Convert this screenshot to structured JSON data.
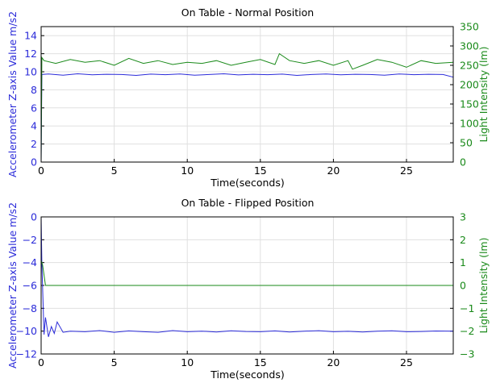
{
  "colors": {
    "left": "#2b2bd9",
    "right": "#1a8a1a",
    "axis": "#000000",
    "grid": "#e0e0e0"
  },
  "chart_data": [
    {
      "type": "line",
      "title": "On Table - Normal Position",
      "xlabel": "Time(seconds)",
      "ylabel_left": "Accelerometer Z-axis Value m/s2",
      "ylabel_right": "Light Intensity (lm)",
      "xlim": [
        0,
        28.2
      ],
      "ylim_left": [
        0,
        15
      ],
      "ylim_right": [
        0,
        350
      ],
      "xticks": [
        "0",
        "5",
        "10",
        "15",
        "20",
        "25"
      ],
      "yticks_left": [
        "0",
        "2",
        "4",
        "6",
        "8",
        "10",
        "12",
        "14"
      ],
      "yticks_right": [
        "0",
        "50",
        "100",
        "150",
        "200",
        "250",
        "300",
        "350"
      ],
      "grid": true,
      "series": [
        {
          "axis": "left",
          "color": "#2b2bd9",
          "x": [
            0,
            0.05,
            0.5,
            1.5,
            2.5,
            3.5,
            4.5,
            5.5,
            6.5,
            7.5,
            8.5,
            9.5,
            10.5,
            11.5,
            12.5,
            13.5,
            14.5,
            15.5,
            16.5,
            17.5,
            18.5,
            19.5,
            20.5,
            21.5,
            22.5,
            23.5,
            24.5,
            25.5,
            26.5,
            27.5,
            28.2
          ],
          "y": [
            0,
            9.7,
            9.75,
            9.62,
            9.78,
            9.66,
            9.72,
            9.7,
            9.6,
            9.74,
            9.68,
            9.75,
            9.62,
            9.7,
            9.78,
            9.65,
            9.72,
            9.68,
            9.74,
            9.6,
            9.7,
            9.76,
            9.66,
            9.72,
            9.7,
            9.62,
            9.75,
            9.68,
            9.72,
            9.7,
            9.4
          ]
        },
        {
          "axis": "right",
          "color": "#1a8a1a",
          "x": [
            0,
            0.05,
            0.2,
            1,
            2,
            3,
            4,
            5,
            6,
            7,
            8,
            9,
            10,
            11,
            12,
            13,
            14,
            15,
            16,
            16.3,
            17,
            18,
            19,
            20,
            21,
            21.3,
            22,
            23,
            24,
            25,
            26,
            27,
            28.2
          ],
          "y": [
            0,
            270,
            262,
            255,
            265,
            258,
            262,
            250,
            268,
            255,
            262,
            252,
            258,
            255,
            262,
            250,
            258,
            265,
            252,
            280,
            262,
            255,
            262,
            250,
            262,
            240,
            250,
            265,
            258,
            245,
            262,
            255,
            258
          ]
        }
      ]
    },
    {
      "type": "line",
      "title": "On Table - Flipped Position",
      "xlabel": "Time(seconds)",
      "ylabel_left": "Accelerometer Z-axis Value m/s2",
      "ylabel_right": "Light Intensity (lm)",
      "xlim": [
        0,
        28.2
      ],
      "ylim_left": [
        -12,
        0
      ],
      "ylim_right": [
        -3,
        3
      ],
      "xticks": [
        "0",
        "5",
        "10",
        "15",
        "20",
        "25"
      ],
      "yticks_left": [
        "0",
        "−2",
        "−4",
        "−6",
        "−8",
        "−10",
        "−12"
      ],
      "yticks_right": [
        "3",
        "2",
        "1",
        "0",
        "−1",
        "−2",
        "−3"
      ],
      "grid": true,
      "series": [
        {
          "axis": "left",
          "color": "#2b2bd9",
          "x": [
            0,
            0.05,
            0.2,
            0.3,
            0.5,
            0.7,
            0.9,
            1.1,
            1.5,
            2,
            3,
            4,
            5,
            6,
            7,
            8,
            9,
            10,
            11,
            12,
            13,
            14,
            15,
            16,
            17,
            18,
            19,
            20,
            21,
            22,
            23,
            24,
            25,
            26,
            27,
            28.2
          ],
          "y": [
            0,
            -4,
            -10.3,
            -8.8,
            -10.5,
            -9.6,
            -10.2,
            -9.2,
            -10.1,
            -10.0,
            -10.05,
            -9.95,
            -10.1,
            -9.98,
            -10.05,
            -10.1,
            -9.95,
            -10.05,
            -10.0,
            -10.08,
            -9.97,
            -10.03,
            -10.05,
            -9.98,
            -10.07,
            -10.0,
            -9.96,
            -10.05,
            -10.02,
            -10.08,
            -10.0,
            -9.97,
            -10.05,
            -10.03,
            -9.99,
            -10.0
          ]
        },
        {
          "axis": "right",
          "color": "#1a8a1a",
          "x": [
            0,
            0.1,
            0.3,
            28.2
          ],
          "y": [
            1.1,
            0.9,
            0,
            0
          ]
        }
      ]
    }
  ]
}
